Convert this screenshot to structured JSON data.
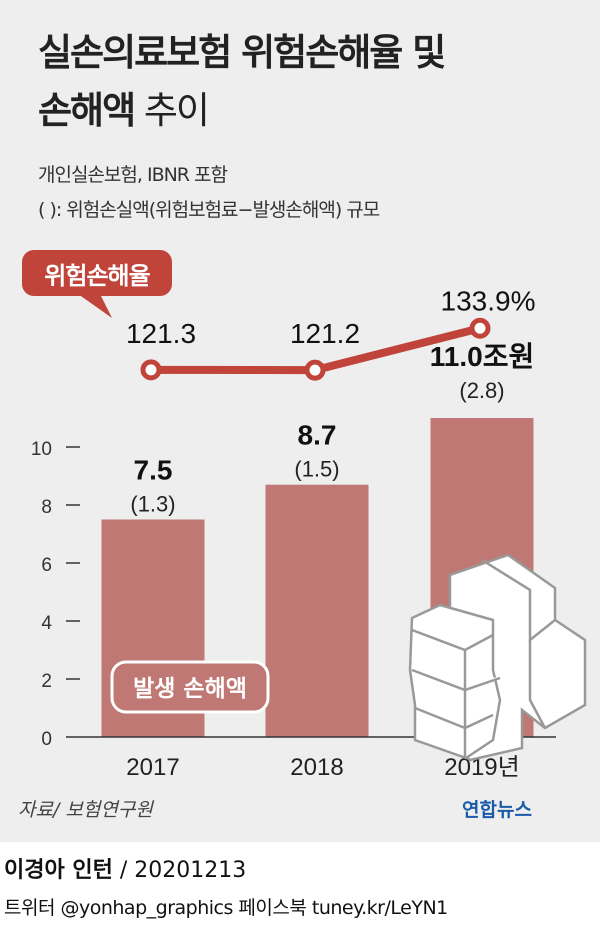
{
  "title_line1": "실손의료보험 위험손해율 및",
  "title_line2_bold": "손해액",
  "title_line2_rest": " 추이",
  "subtitle1": "개인실손보험, IBNR 포함",
  "subtitle2": "( ):  위험손실액(위험보험료−발생손해액) 규모",
  "source": "자료/ 보험연구원",
  "logo": "연합뉴스",
  "credit_name": "이경아 인턴",
  "credit_date": " / 20201213",
  "social": "트위터 @yonhap_graphics  페이스북 tuney.kr/LeYN1",
  "colors": {
    "bar": "#bf7873",
    "line": "#c0443a",
    "background": "#eeeeee"
  },
  "chart_data": {
    "type": "bar+line",
    "categories": [
      "2017",
      "2018",
      "2019년"
    ],
    "bar_series": {
      "name": "발생 손해액",
      "values": [
        7.5,
        8.7,
        11.0
      ],
      "labels": [
        "7.5",
        "8.7",
        "11.0조원"
      ],
      "sub_labels": [
        "(1.3)",
        "(1.5)",
        "(2.8)"
      ]
    },
    "line_series": {
      "name": "위험손해율",
      "values": [
        121.3,
        121.2,
        133.9
      ],
      "labels": [
        "121.3",
        "121.2",
        "133.9%"
      ]
    },
    "yticks": [
      "0",
      "2",
      "4",
      "6",
      "8",
      "10"
    ],
    "ylim": [
      0,
      11
    ]
  }
}
